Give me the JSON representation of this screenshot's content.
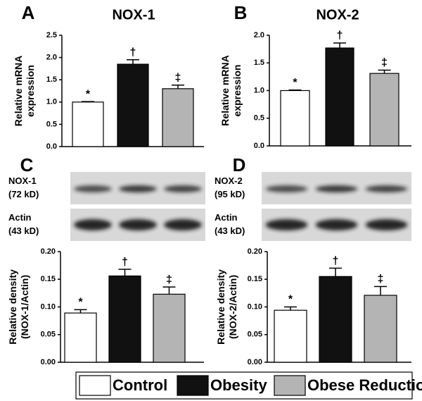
{
  "legend": [
    {
      "name": "Control",
      "color": "#ffffff"
    },
    {
      "name": "Obesity",
      "color": "#111111"
    },
    {
      "name": "Obese Reduction",
      "color": "#b4b4b4"
    }
  ],
  "chart_data": [
    {
      "type": "bar",
      "panel": "A",
      "title": "NOX-1",
      "ylabel": [
        "Relative mRNA",
        "expression"
      ],
      "values": [
        1.0,
        1.85,
        1.3
      ],
      "errors": [
        0.01,
        0.1,
        0.08
      ],
      "annotations": [
        "*",
        "†",
        "‡"
      ],
      "ylim": [
        0,
        2.5
      ],
      "yticks": [
        {
          "value": 0,
          "label": "0.0"
        },
        {
          "value": 0.5,
          "label": "0.5"
        },
        {
          "value": 1,
          "label": "1.0"
        },
        {
          "value": 1.5,
          "label": "1.5"
        },
        {
          "value": 2,
          "label": "2.0"
        },
        {
          "value": 2.5,
          "label": "2.5"
        }
      ]
    },
    {
      "type": "bar",
      "panel": "B",
      "title": "NOX-2",
      "ylabel": [
        "Relative mRNA",
        "expression"
      ],
      "values": [
        1.0,
        1.77,
        1.31
      ],
      "errors": [
        0.01,
        0.09,
        0.06
      ],
      "annotations": [
        "*",
        "†",
        "‡"
      ],
      "ylim": [
        0,
        2.0
      ],
      "yticks": [
        {
          "value": 0,
          "label": "0.0"
        },
        {
          "value": 0.5,
          "label": "0.5"
        },
        {
          "value": 1,
          "label": "1.0"
        },
        {
          "value": 1.5,
          "label": "1.5"
        },
        {
          "value": 2,
          "label": "2.0"
        }
      ]
    },
    {
      "type": "bar",
      "panel": "C",
      "blot_labels": [
        [
          "NOX-1",
          "(72 kD)"
        ],
        [
          "Actin",
          "(43 kD)"
        ]
      ],
      "ylabel": [
        "Relative density",
        "(NOX-1/Actin)"
      ],
      "values": [
        0.089,
        0.156,
        0.123
      ],
      "errors": [
        0.006,
        0.012,
        0.013
      ],
      "annotations": [
        "*",
        "†",
        "‡"
      ],
      "ylim": [
        0,
        0.2
      ],
      "yticks": [
        {
          "value": 0,
          "label": "0.00"
        },
        {
          "value": 0.05,
          "label": "0.05"
        },
        {
          "value": 0.1,
          "label": "0.10"
        },
        {
          "value": 0.15,
          "label": "0.15"
        },
        {
          "value": 0.2,
          "label": "0.20"
        }
      ]
    },
    {
      "type": "bar",
      "panel": "D",
      "blot_labels": [
        [
          "NOX-2",
          "(95 kD)"
        ],
        [
          "Actin",
          "(43 kD)"
        ]
      ],
      "ylabel": [
        "Relative density",
        "(NOX-2/Actin)"
      ],
      "values": [
        0.094,
        0.155,
        0.121
      ],
      "errors": [
        0.006,
        0.015,
        0.016
      ],
      "annotations": [
        "*",
        "†",
        "‡"
      ],
      "ylim": [
        0,
        0.2
      ],
      "yticks": [
        {
          "value": 0,
          "label": "0.00"
        },
        {
          "value": 0.05,
          "label": "0.05"
        },
        {
          "value": 0.1,
          "label": "0.10"
        },
        {
          "value": 0.15,
          "label": "0.15"
        },
        {
          "value": 0.2,
          "label": "0.20"
        }
      ]
    }
  ]
}
